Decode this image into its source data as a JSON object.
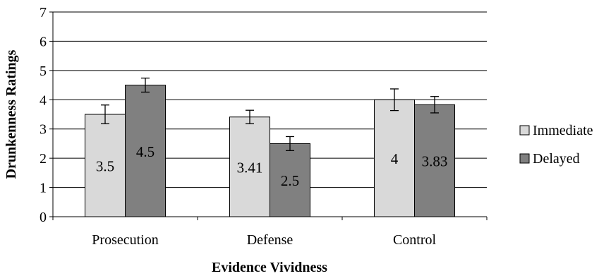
{
  "chart_data": {
    "type": "bar",
    "categories": [
      "Prosecution",
      "Defense",
      "Control"
    ],
    "series": [
      {
        "name": "Immediate",
        "values": [
          3.5,
          3.41,
          4
        ],
        "labels": [
          "3.5",
          "3.41",
          "4"
        ],
        "error": [
          0.32,
          0.23,
          0.37
        ],
        "color": "#d9d9d9"
      },
      {
        "name": "Delayed",
        "values": [
          4.5,
          2.5,
          3.83
        ],
        "labels": [
          "4.5",
          "2.5",
          "3.83"
        ],
        "error": [
          0.24,
          0.24,
          0.28
        ],
        "color": "#808080"
      }
    ],
    "xlabel": "Evidence Vividness",
    "ylabel": "Drunkenness Ratings",
    "ylim": [
      0,
      7
    ],
    "yticks": [
      "0",
      "1",
      "2",
      "3",
      "4",
      "5",
      "6",
      "7"
    ],
    "grid": true,
    "legend": "right"
  }
}
